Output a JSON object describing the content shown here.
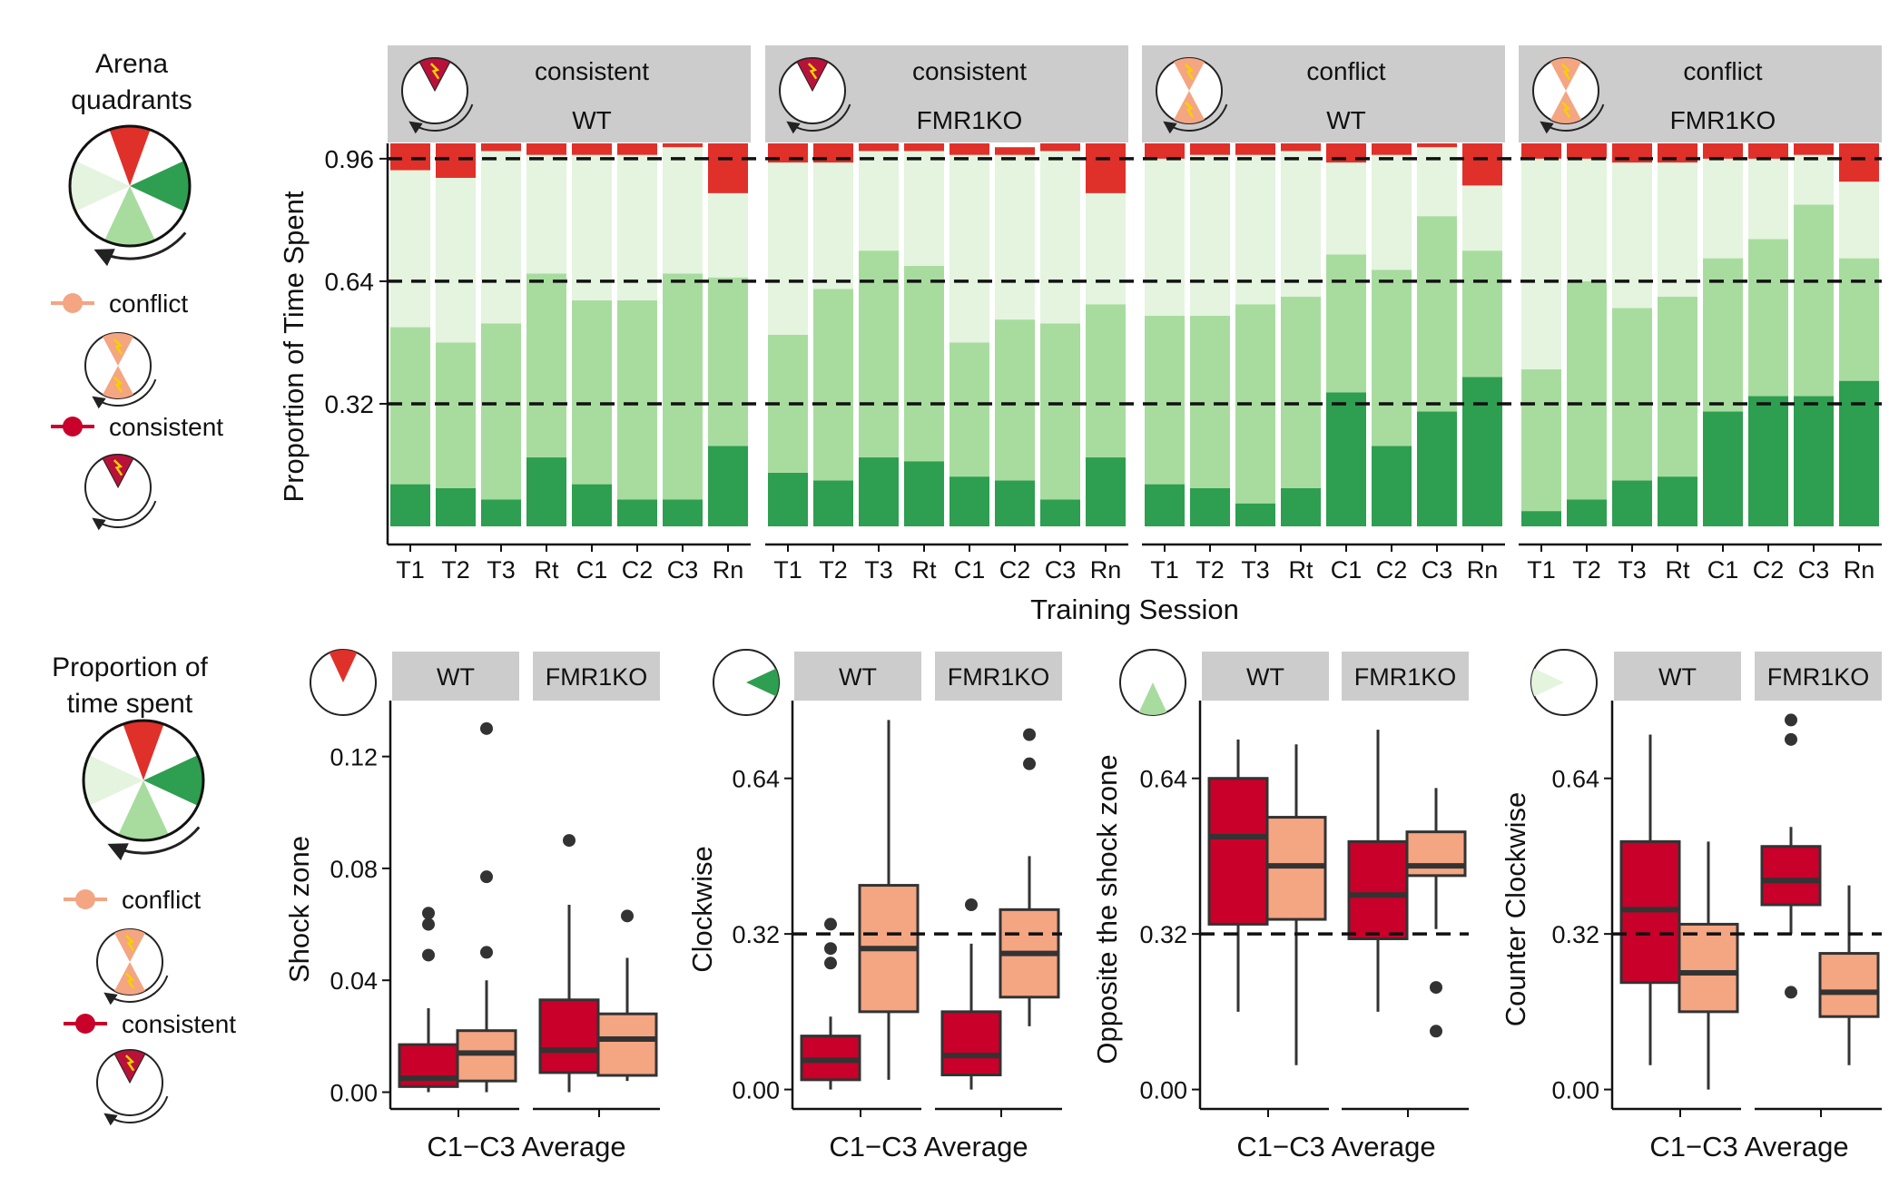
{
  "colors": {
    "shock": "#e0302a",
    "clockwise": "#2e9e50",
    "opposite": "#a8dc9f",
    "counter": "#e4f4df",
    "consistent": "#c8002a",
    "conflict": "#f4a582",
    "strip": "#cccccc",
    "box_line": "#333333"
  },
  "legend_top": {
    "title_line1": "Arena",
    "title_line2": "quadrants",
    "conflict_label": "conflict",
    "consistent_label": "consistent"
  },
  "legend_bottom": {
    "title_line1": "Proportion of",
    "title_line2": "time spent",
    "conflict_label": "conflict",
    "consistent_label": "consistent"
  },
  "chart_data": [
    {
      "type": "bar",
      "stacked": true,
      "title": "",
      "ylabel": "Proportion of Time Spent",
      "xlabel": "Training Session",
      "y_ticks": [
        "0.32",
        "0.64",
        "0.96"
      ],
      "y_tick_values": [
        0.32,
        0.64,
        0.96
      ],
      "reference_lines": [
        0.32,
        0.64,
        0.96
      ],
      "ylim": [
        0,
        1
      ],
      "categories": [
        "T1",
        "T2",
        "T3",
        "Rt",
        "C1",
        "C2",
        "C3",
        "Rn"
      ],
      "stack_order": [
        "Clockwise",
        "Opposite the shock zone",
        "Counter Clockwise",
        "Shock zone"
      ],
      "panels": [
        {
          "strip_line1": "consistent",
          "strip_line2": "WT",
          "zones": "consistent",
          "series": [
            {
              "name": "Clockwise",
              "values": [
                0.11,
                0.1,
                0.07,
                0.18,
                0.11,
                0.07,
                0.07,
                0.21
              ]
            },
            {
              "name": "Opposite the shock zone",
              "values": [
                0.41,
                0.38,
                0.46,
                0.48,
                0.48,
                0.52,
                0.59,
                0.44
              ]
            },
            {
              "name": "Counter Clockwise",
              "values": [
                0.41,
                0.43,
                0.45,
                0.31,
                0.38,
                0.38,
                0.33,
                0.22
              ]
            },
            {
              "name": "Shock zone",
              "values": [
                0.07,
                0.09,
                0.02,
                0.03,
                0.03,
                0.03,
                0.01,
                0.13
              ]
            }
          ]
        },
        {
          "strip_line1": "consistent",
          "strip_line2": "FMR1KO",
          "zones": "consistent",
          "series": [
            {
              "name": "Clockwise",
              "values": [
                0.14,
                0.12,
                0.18,
                0.17,
                0.13,
                0.12,
                0.07,
                0.18
              ]
            },
            {
              "name": "Opposite the shock zone",
              "values": [
                0.36,
                0.5,
                0.54,
                0.51,
                0.35,
                0.42,
                0.46,
                0.4
              ]
            },
            {
              "name": "Counter Clockwise",
              "values": [
                0.45,
                0.33,
                0.26,
                0.3,
                0.49,
                0.43,
                0.45,
                0.29
              ]
            },
            {
              "name": "Shock zone",
              "values": [
                0.05,
                0.05,
                0.02,
                0.02,
                0.03,
                0.02,
                0.02,
                0.13
              ]
            }
          ]
        },
        {
          "strip_line1": "conflict",
          "strip_line2": "WT",
          "zones": "conflict",
          "series": [
            {
              "name": "Clockwise",
              "values": [
                0.11,
                0.1,
                0.06,
                0.1,
                0.35,
                0.21,
                0.3,
                0.39
              ]
            },
            {
              "name": "Opposite the shock zone",
              "values": [
                0.44,
                0.45,
                0.52,
                0.5,
                0.36,
                0.46,
                0.51,
                0.33
              ]
            },
            {
              "name": "Counter Clockwise",
              "values": [
                0.41,
                0.42,
                0.39,
                0.38,
                0.24,
                0.3,
                0.18,
                0.17
              ]
            },
            {
              "name": "Shock zone",
              "values": [
                0.04,
                0.03,
                0.03,
                0.02,
                0.05,
                0.03,
                0.01,
                0.11
              ]
            }
          ]
        },
        {
          "strip_line1": "conflict",
          "strip_line2": "FMR1KO",
          "zones": "conflict",
          "series": [
            {
              "name": "Clockwise",
              "values": [
                0.04,
                0.07,
                0.12,
                0.13,
                0.3,
                0.34,
                0.34,
                0.38
              ]
            },
            {
              "name": "Opposite the shock zone",
              "values": [
                0.37,
                0.57,
                0.45,
                0.47,
                0.4,
                0.41,
                0.5,
                0.32
              ]
            },
            {
              "name": "Counter Clockwise",
              "values": [
                0.55,
                0.32,
                0.38,
                0.35,
                0.26,
                0.21,
                0.13,
                0.2
              ]
            },
            {
              "name": "Shock zone",
              "values": [
                0.04,
                0.04,
                0.05,
                0.05,
                0.04,
                0.04,
                0.03,
                0.1
              ]
            }
          ]
        }
      ]
    },
    {
      "type": "box",
      "ylabel": "Shock zone",
      "xlabel": "C1−C3 Average",
      "quadrant_icon": "shock",
      "y_ticks": [
        "0.00",
        "0.04",
        "0.08",
        "0.12"
      ],
      "y_tick_values": [
        0,
        0.04,
        0.08,
        0.12
      ],
      "ylim": [
        -0.006,
        0.14
      ],
      "reference_line": null,
      "groups": [
        {
          "name": "WT",
          "boxes": [
            {
              "condition": "consistent",
              "whisker_low": 0.0,
              "q1": 0.002,
              "median": 0.005,
              "q3": 0.017,
              "whisker_high": 0.03,
              "outliers": [
                0.06,
                0.064,
                0.049
              ]
            },
            {
              "condition": "conflict",
              "whisker_low": 0.0,
              "q1": 0.004,
              "median": 0.014,
              "q3": 0.022,
              "whisker_high": 0.04,
              "outliers": [
                0.13,
                0.077,
                0.05
              ]
            }
          ]
        },
        {
          "name": "FMR1KO",
          "boxes": [
            {
              "condition": "consistent",
              "whisker_low": 0.0,
              "q1": 0.007,
              "median": 0.015,
              "q3": 0.033,
              "whisker_high": 0.067,
              "outliers": [
                0.09
              ]
            },
            {
              "condition": "conflict",
              "whisker_low": 0.004,
              "q1": 0.006,
              "median": 0.019,
              "q3": 0.028,
              "whisker_high": 0.048,
              "outliers": [
                0.063
              ]
            }
          ]
        }
      ]
    },
    {
      "type": "box",
      "ylabel": "Clockwise",
      "xlabel": "C1−C3 Average",
      "quadrant_icon": "clockwise",
      "y_ticks": [
        "0.00",
        "0.32",
        "0.64"
      ],
      "y_tick_values": [
        0,
        0.32,
        0.64
      ],
      "ylim": [
        -0.04,
        0.8
      ],
      "reference_line": 0.32,
      "groups": [
        {
          "name": "WT",
          "boxes": [
            {
              "condition": "consistent",
              "whisker_low": 0.0,
              "q1": 0.02,
              "median": 0.06,
              "q3": 0.11,
              "whisker_high": 0.15,
              "outliers": [
                0.34,
                0.29,
                0.26
              ]
            },
            {
              "condition": "conflict",
              "whisker_low": 0.02,
              "q1": 0.16,
              "median": 0.29,
              "q3": 0.42,
              "whisker_high": 0.76,
              "outliers": []
            }
          ]
        },
        {
          "name": "FMR1KO",
          "boxes": [
            {
              "condition": "consistent",
              "whisker_low": 0.0,
              "q1": 0.03,
              "median": 0.07,
              "q3": 0.16,
              "whisker_high": 0.3,
              "outliers": [
                0.38
              ]
            },
            {
              "condition": "conflict",
              "whisker_low": 0.13,
              "q1": 0.19,
              "median": 0.28,
              "q3": 0.37,
              "whisker_high": 0.48,
              "outliers": [
                0.73,
                0.67
              ]
            }
          ]
        }
      ]
    },
    {
      "type": "box",
      "ylabel": "Opposite the shock zone",
      "xlabel": "C1−C3 Average",
      "quadrant_icon": "opposite",
      "y_ticks": [
        "0.00",
        "0.32",
        "0.64"
      ],
      "y_tick_values": [
        0,
        0.32,
        0.64
      ],
      "ylim": [
        -0.04,
        0.8
      ],
      "reference_line": 0.32,
      "groups": [
        {
          "name": "WT",
          "boxes": [
            {
              "condition": "consistent",
              "whisker_low": 0.16,
              "q1": 0.34,
              "median": 0.52,
              "q3": 0.64,
              "whisker_high": 0.72,
              "outliers": []
            },
            {
              "condition": "conflict",
              "whisker_low": 0.05,
              "q1": 0.35,
              "median": 0.46,
              "q3": 0.56,
              "whisker_high": 0.71,
              "outliers": []
            }
          ]
        },
        {
          "name": "FMR1KO",
          "boxes": [
            {
              "condition": "consistent",
              "whisker_low": 0.16,
              "q1": 0.31,
              "median": 0.4,
              "q3": 0.51,
              "whisker_high": 0.74,
              "outliers": []
            },
            {
              "condition": "conflict",
              "whisker_low": 0.33,
              "q1": 0.44,
              "median": 0.46,
              "q3": 0.53,
              "whisker_high": 0.62,
              "outliers": [
                0.21,
                0.12
              ]
            }
          ]
        }
      ]
    },
    {
      "type": "box",
      "ylabel": "Counter Clockwise",
      "xlabel": "C1−C3 Average",
      "quadrant_icon": "counter",
      "y_ticks": [
        "0.00",
        "0.32",
        "0.64"
      ],
      "y_tick_values": [
        0,
        0.32,
        0.64
      ],
      "ylim": [
        -0.04,
        0.8
      ],
      "reference_line": 0.32,
      "groups": [
        {
          "name": "WT",
          "boxes": [
            {
              "condition": "consistent",
              "whisker_low": 0.05,
              "q1": 0.22,
              "median": 0.37,
              "q3": 0.51,
              "whisker_high": 0.73,
              "outliers": []
            },
            {
              "condition": "conflict",
              "whisker_low": 0.0,
              "q1": 0.16,
              "median": 0.24,
              "q3": 0.34,
              "whisker_high": 0.51,
              "outliers": []
            }
          ]
        },
        {
          "name": "FMR1KO",
          "boxes": [
            {
              "condition": "consistent",
              "whisker_low": 0.32,
              "q1": 0.38,
              "median": 0.43,
              "q3": 0.5,
              "whisker_high": 0.54,
              "outliers": [
                0.76,
                0.72,
                0.2
              ]
            },
            {
              "condition": "conflict",
              "whisker_low": 0.05,
              "q1": 0.15,
              "median": 0.2,
              "q3": 0.28,
              "whisker_high": 0.42,
              "outliers": []
            }
          ]
        }
      ]
    }
  ]
}
